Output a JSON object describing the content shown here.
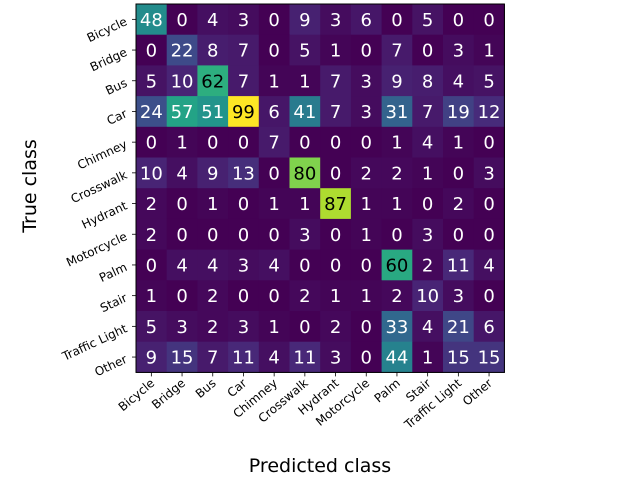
{
  "chart_data": {
    "type": "heatmap",
    "xlabel": "Predicted class",
    "ylabel": "True class",
    "x_categories": [
      "Bicycle",
      "Bridge",
      "Bus",
      "Car",
      "Chimney",
      "Crosswalk",
      "Hydrant",
      "Motorcycle",
      "Palm",
      "Stair",
      "Traffic Light",
      "Other"
    ],
    "y_categories": [
      "Bicycle",
      "Bridge",
      "Bus",
      "Car",
      "Chimney",
      "Crosswalk",
      "Hydrant",
      "Motorcycle",
      "Palm",
      "Stair",
      "Traffic Light",
      "Other"
    ],
    "values": [
      [
        48,
        0,
        4,
        3,
        0,
        9,
        3,
        6,
        0,
        5,
        0,
        0
      ],
      [
        0,
        22,
        8,
        7,
        0,
        5,
        1,
        0,
        7,
        0,
        3,
        1
      ],
      [
        5,
        10,
        62,
        7,
        1,
        1,
        7,
        3,
        9,
        8,
        4,
        5
      ],
      [
        24,
        57,
        51,
        99,
        6,
        41,
        7,
        3,
        31,
        7,
        19,
        12
      ],
      [
        0,
        1,
        0,
        0,
        7,
        0,
        0,
        0,
        1,
        4,
        1,
        0
      ],
      [
        10,
        4,
        9,
        13,
        0,
        80,
        0,
        2,
        2,
        1,
        0,
        3
      ],
      [
        2,
        0,
        1,
        0,
        1,
        1,
        87,
        1,
        1,
        0,
        2,
        0
      ],
      [
        2,
        0,
        0,
        0,
        0,
        3,
        0,
        1,
        0,
        3,
        0,
        0
      ],
      [
        0,
        4,
        4,
        3,
        4,
        0,
        0,
        0,
        60,
        2,
        11,
        4
      ],
      [
        1,
        0,
        2,
        0,
        0,
        2,
        1,
        1,
        2,
        10,
        3,
        0
      ],
      [
        5,
        3,
        2,
        3,
        1,
        0,
        2,
        0,
        33,
        4,
        21,
        6
      ],
      [
        9,
        15,
        7,
        11,
        4,
        11,
        3,
        0,
        44,
        1,
        15,
        15
      ]
    ],
    "colormap": "viridis",
    "value_range": [
      0,
      99
    ],
    "grid": false
  }
}
